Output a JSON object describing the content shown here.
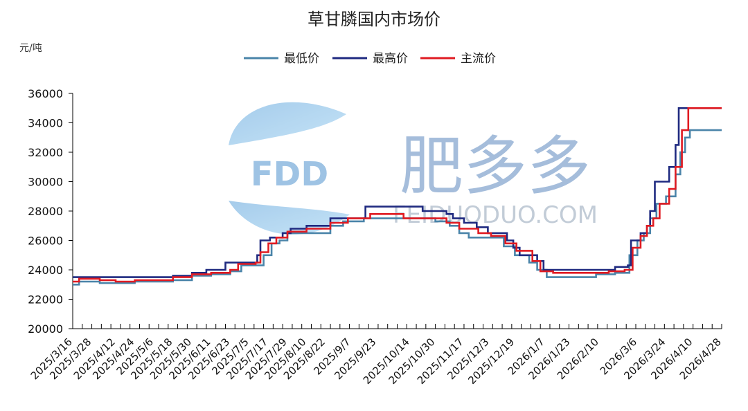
{
  "chart_data": {
    "type": "line",
    "title": "草甘膦国内市场价",
    "ylabel": "元/吨",
    "ylim": [
      20000,
      36000
    ],
    "yticks": [
      "36000",
      "34000",
      "32000",
      "30000",
      "28000",
      "26000",
      "24000",
      "22000",
      "20000"
    ],
    "x_start": "2025/3/16",
    "x_end": "2026/4/28",
    "xticks": [
      "2025/3/16",
      "2025/3/28",
      "2025/4/12",
      "2025/4/24",
      "2025/5/6",
      "2025/5/18",
      "2025/5/30",
      "2025/6/11",
      "2025/6/23",
      "2025/7/5",
      "2025/7/17",
      "2025/7/29",
      "2025/8/10",
      "2025/8/22",
      "2025/9/7",
      "2025/9/23",
      "2025/10/14",
      "2025/10/30",
      "2025/11/17",
      "2025/12/3",
      "2025/12/19",
      "2026/1/7",
      "2026/1/23",
      "2026/2/10",
      "2026/3/6",
      "2026/3/24",
      "2026/4/10",
      "2026/4/28"
    ],
    "legend_position": "top-center",
    "grid": false,
    "series": [
      {
        "name": "最低价",
        "color": "#4a84a9",
        "points": [
          [
            "2025/3/16",
            23000
          ],
          [
            "2025/3/20",
            23200
          ],
          [
            "2025/4/2",
            23100
          ],
          [
            "2025/4/24",
            23200
          ],
          [
            "2025/5/18",
            23300
          ],
          [
            "2025/5/30",
            23600
          ],
          [
            "2025/6/11",
            23700
          ],
          [
            "2025/6/23",
            23900
          ],
          [
            "2025/6/30",
            24300
          ],
          [
            "2025/7/10",
            24300
          ],
          [
            "2025/7/14",
            25000
          ],
          [
            "2025/7/19",
            25800
          ],
          [
            "2025/7/24",
            26000
          ],
          [
            "2025/7/29",
            26500
          ],
          [
            "2025/8/10",
            26500
          ],
          [
            "2025/8/25",
            27000
          ],
          [
            "2025/9/2",
            27300
          ],
          [
            "2025/9/15",
            27500
          ],
          [
            "2025/10/30",
            27300
          ],
          [
            "2025/11/8",
            27000
          ],
          [
            "2025/11/14",
            26500
          ],
          [
            "2025/11/20",
            26200
          ],
          [
            "2025/12/1",
            26200
          ],
          [
            "2025/12/12",
            25600
          ],
          [
            "2025/12/19",
            25000
          ],
          [
            "2025/12/28",
            24500
          ],
          [
            "2026/1/2",
            24000
          ],
          [
            "2026/1/8",
            23500
          ],
          [
            "2026/2/8",
            23700
          ],
          [
            "2026/2/20",
            23800
          ],
          [
            "2026/2/26",
            23800
          ],
          [
            "2026/3/1",
            25000
          ],
          [
            "2026/3/6",
            26000
          ],
          [
            "2026/3/10",
            26500
          ],
          [
            "2026/3/14",
            27500
          ],
          [
            "2026/3/18",
            28500
          ],
          [
            "2026/3/24",
            29000
          ],
          [
            "2026/3/30",
            30500
          ],
          [
            "2026/4/2",
            32000
          ],
          [
            "2026/4/5",
            33000
          ],
          [
            "2026/4/8",
            33500
          ],
          [
            "2026/4/28",
            33500
          ]
        ]
      },
      {
        "name": "最高价",
        "color": "#1f2a80",
        "points": [
          [
            "2025/3/16",
            23500
          ],
          [
            "2025/5/18",
            23600
          ],
          [
            "2025/5/30",
            23800
          ],
          [
            "2025/6/8",
            24000
          ],
          [
            "2025/6/20",
            24500
          ],
          [
            "2025/7/8",
            24500
          ],
          [
            "2025/7/10",
            25000
          ],
          [
            "2025/7/12",
            26000
          ],
          [
            "2025/7/18",
            26200
          ],
          [
            "2025/7/26",
            26500
          ],
          [
            "2025/7/31",
            26800
          ],
          [
            "2025/8/10",
            27000
          ],
          [
            "2025/8/25",
            27500
          ],
          [
            "2025/9/16",
            28300
          ],
          [
            "2025/10/22",
            28000
          ],
          [
            "2025/11/6",
            27800
          ],
          [
            "2025/11/10",
            27500
          ],
          [
            "2025/11/17",
            27200
          ],
          [
            "2025/11/25",
            26900
          ],
          [
            "2025/12/2",
            26500
          ],
          [
            "2025/12/14",
            26000
          ],
          [
            "2025/12/18",
            25500
          ],
          [
            "2025/12/22",
            25000
          ],
          [
            "2026/1/2",
            24600
          ],
          [
            "2026/1/6",
            24000
          ],
          [
            "2026/2/16",
            24000
          ],
          [
            "2026/2/20",
            24200
          ],
          [
            "2026/2/28",
            24300
          ],
          [
            "2026/3/2",
            26000
          ],
          [
            "2026/3/8",
            26500
          ],
          [
            "2026/3/12",
            27000
          ],
          [
            "2026/3/14",
            28000
          ],
          [
            "2026/3/17",
            30000
          ],
          [
            "2026/3/22",
            30000
          ],
          [
            "2026/3/26",
            31000
          ],
          [
            "2026/3/30",
            32500
          ],
          [
            "2026/4/1",
            35000
          ],
          [
            "2026/4/28",
            35000
          ]
        ]
      },
      {
        "name": "主流价",
        "color": "#e01b22",
        "points": [
          [
            "2025/3/16",
            23200
          ],
          [
            "2025/3/20",
            23400
          ],
          [
            "2025/4/2",
            23300
          ],
          [
            "2025/4/12",
            23200
          ],
          [
            "2025/4/24",
            23300
          ],
          [
            "2025/5/18",
            23500
          ],
          [
            "2025/5/30",
            23700
          ],
          [
            "2025/6/11",
            23800
          ],
          [
            "2025/6/23",
            24000
          ],
          [
            "2025/6/28",
            24400
          ],
          [
            "2025/7/9",
            24500
          ],
          [
            "2025/7/12",
            25200
          ],
          [
            "2025/7/17",
            25800
          ],
          [
            "2025/7/22",
            26200
          ],
          [
            "2025/7/29",
            26600
          ],
          [
            "2025/8/10",
            26800
          ],
          [
            "2025/8/25",
            27200
          ],
          [
            "2025/9/5",
            27500
          ],
          [
            "2025/9/19",
            27800
          ],
          [
            "2025/10/10",
            27500
          ],
          [
            "2025/10/24",
            27500
          ],
          [
            "2025/11/6",
            27200
          ],
          [
            "2025/11/14",
            26800
          ],
          [
            "2025/11/26",
            26500
          ],
          [
            "2025/12/4",
            26300
          ],
          [
            "2025/12/13",
            25800
          ],
          [
            "2025/12/20",
            25300
          ],
          [
            "2025/12/30",
            24600
          ],
          [
            "2026/1/4",
            23900
          ],
          [
            "2026/1/12",
            23800
          ],
          [
            "2026/2/16",
            23900
          ],
          [
            "2026/2/26",
            24000
          ],
          [
            "2026/3/3",
            25500
          ],
          [
            "2026/3/8",
            26300
          ],
          [
            "2026/3/12",
            27000
          ],
          [
            "2026/3/16",
            27500
          ],
          [
            "2026/3/20",
            28500
          ],
          [
            "2026/3/26",
            29500
          ],
          [
            "2026/3/30",
            31000
          ],
          [
            "2026/4/3",
            33500
          ],
          [
            "2026/4/7",
            35000
          ],
          [
            "2026/4/28",
            35000
          ]
        ]
      }
    ]
  },
  "watermark": {
    "logo_text": "FDD",
    "cn_text": "肥多多",
    "url_text": "FEIDUODUO.COM"
  }
}
